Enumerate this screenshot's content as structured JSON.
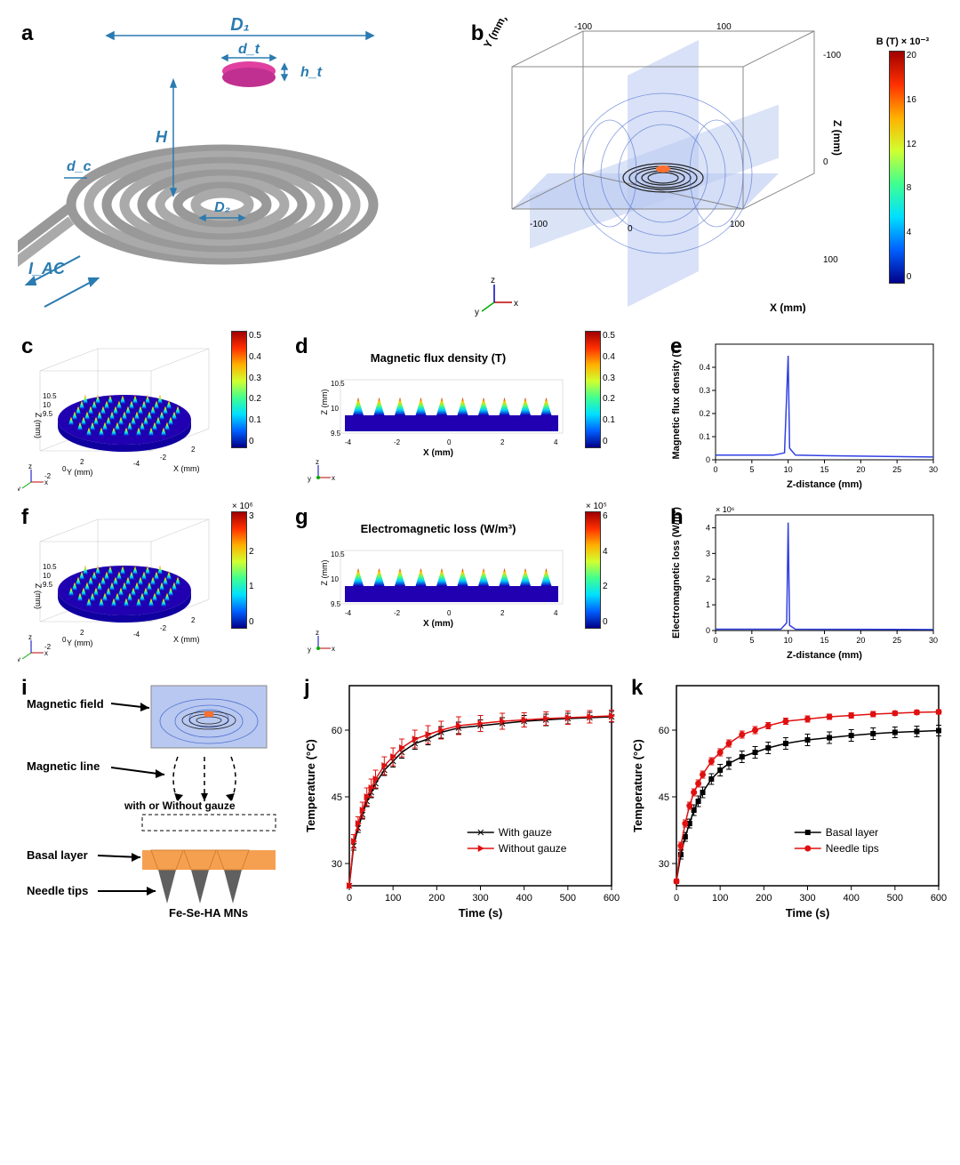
{
  "figure": {
    "a": {
      "label": "a",
      "annotations": {
        "D1": "D₁",
        "D2": "D₂",
        "dc": "d_c",
        "dt": "d_t",
        "ht": "h_t",
        "H": "H",
        "Iac": "I_AC"
      },
      "coil_color": "#b0b0b0",
      "target_color": "#e040a0",
      "arrow_color": "#2a7bb0",
      "label_color": "#2a7bb0"
    },
    "b": {
      "label": "b",
      "cube_extent": 100,
      "axis_labels": {
        "x": "X (mm)",
        "y": "Y (mm)",
        "z": "Z (mm)"
      },
      "colorbar": {
        "title": "B (T) × 10⁻³",
        "min": 0,
        "max": 20,
        "ticks": [
          0,
          4,
          8,
          12,
          16,
          20
        ]
      },
      "slice_color": "#b8c8f0",
      "coil_color": "#202020",
      "center_hot": "#ff7030"
    },
    "c": {
      "label": "c",
      "colorbar": {
        "min": 0,
        "max": 0.5,
        "ticks": [
          0,
          0.1,
          0.2,
          0.3,
          0.4,
          0.5
        ]
      },
      "axes": {
        "x": "X (mm)",
        "y": "Y (mm)",
        "z": "Z (mm)",
        "xrange": [
          -4,
          4
        ],
        "zticks": [
          9.5,
          10,
          10.5
        ]
      },
      "disk_color": "#2000b0"
    },
    "d": {
      "label": "d",
      "title": "Magnetic flux density (T)",
      "colorbar": {
        "min": 0,
        "max": 0.5,
        "ticks": [
          0,
          0.1,
          0.2,
          0.3,
          0.4,
          0.5
        ]
      },
      "axes": {
        "x": "X (mm)",
        "z": "Z (mm)",
        "xrange": [
          -4,
          4
        ],
        "zticks": [
          9.5,
          10,
          10.5
        ]
      }
    },
    "e": {
      "label": "e",
      "type": "line",
      "xlabel": "Z-distance (mm)",
      "ylabel": "Magnetic flux density (T)",
      "xlim": [
        0,
        30
      ],
      "xticks": [
        0,
        5,
        10,
        15,
        20,
        25,
        30
      ],
      "ylim": [
        0,
        0.5
      ],
      "yticks": [
        0,
        0.1,
        0.2,
        0.3,
        0.4
      ],
      "line_color": "#3040e0",
      "data": [
        [
          0,
          0.02
        ],
        [
          8,
          0.02
        ],
        [
          9.5,
          0.03
        ],
        [
          10,
          0.45
        ],
        [
          10.2,
          0.05
        ],
        [
          11,
          0.02
        ],
        [
          15,
          0.018
        ],
        [
          30,
          0.012
        ]
      ]
    },
    "f": {
      "label": "f",
      "colorbar": {
        "min": 0,
        "max": 3,
        "ticks": [
          0,
          1,
          2,
          3
        ],
        "exponent": "× 10⁶"
      }
    },
    "g": {
      "label": "g",
      "title": "Electromagnetic loss (W/m³)",
      "colorbar": {
        "min": 0,
        "max": 6,
        "ticks": [
          0,
          2,
          4,
          6
        ],
        "exponent": "× 10⁵"
      }
    },
    "h": {
      "label": "h",
      "type": "line",
      "xlabel": "Z-distance (mm)",
      "ylabel": "Electromagnetic loss (W/m³)",
      "xlim": [
        0,
        30
      ],
      "xticks": [
        0,
        5,
        10,
        15,
        20,
        25,
        30
      ],
      "ylim": [
        0,
        4.5
      ],
      "yticks": [
        0,
        1,
        2,
        3,
        4
      ],
      "exponent": "× 10⁶",
      "line_color": "#3040e0",
      "data": [
        [
          0,
          0.05
        ],
        [
          9,
          0.05
        ],
        [
          9.8,
          0.3
        ],
        [
          10,
          4.2
        ],
        [
          10.2,
          0.2
        ],
        [
          11,
          0.05
        ],
        [
          30,
          0.04
        ]
      ]
    },
    "i": {
      "label": "i",
      "labels": {
        "mag_field": "Magnetic field",
        "mag_line": "Magnetic line",
        "gauze": "with or Without gauze",
        "basal": "Basal layer",
        "tips": "Needle tips",
        "mn": "Fe-Se-HA MNs"
      },
      "basal_color": "#f5a050",
      "tip_color": "#606060"
    },
    "j": {
      "label": "j",
      "type": "line-errorbar",
      "xlabel": "Time (s)",
      "ylabel": "Temperature (°C)",
      "xlim": [
        0,
        600
      ],
      "xticks": [
        0,
        100,
        200,
        300,
        400,
        500,
        600
      ],
      "ylim": [
        25,
        70
      ],
      "yticks": [
        30,
        45,
        60
      ],
      "series": [
        {
          "name": "With gauze",
          "color": "#000000",
          "marker": "x",
          "x": [
            0,
            10,
            20,
            30,
            40,
            50,
            60,
            80,
            100,
            120,
            150,
            180,
            210,
            250,
            300,
            350,
            400,
            450,
            500,
            550,
            600
          ],
          "y": [
            25,
            34,
            38,
            41,
            44,
            46,
            48,
            51,
            53,
            55,
            57,
            58,
            59.5,
            60.5,
            61,
            61.5,
            62,
            62.3,
            62.6,
            62.8,
            63
          ],
          "err": [
            0.5,
            1,
            1,
            1,
            1.2,
            1.2,
            1.2,
            1.2,
            1.3,
            1.3,
            1.3,
            1.3,
            1.3,
            1.3,
            1.3,
            1.3,
            1.3,
            1.3,
            1.2,
            1.2,
            1.2
          ]
        },
        {
          "name": "Without gauze",
          "color": "#e01010",
          "marker": "triangle-right",
          "x": [
            0,
            10,
            20,
            30,
            40,
            50,
            60,
            80,
            100,
            120,
            150,
            180,
            210,
            250,
            300,
            350,
            400,
            450,
            500,
            550,
            600
          ],
          "y": [
            25,
            35,
            39,
            42,
            45,
            47,
            49,
            52,
            54,
            56,
            58,
            59,
            60,
            61,
            61.5,
            62,
            62.3,
            62.6,
            62.8,
            63,
            63.2
          ],
          "err": [
            0.5,
            1.5,
            1.5,
            1.8,
            2,
            2,
            2,
            2,
            2,
            2,
            2,
            2,
            2,
            2,
            1.8,
            1.8,
            1.6,
            1.5,
            1.5,
            1.4,
            1.3
          ]
        }
      ]
    },
    "k": {
      "label": "k",
      "type": "line-errorbar",
      "xlabel": "Time (s)",
      "ylabel": "Temperature (°C)",
      "xlim": [
        0,
        600
      ],
      "xticks": [
        0,
        100,
        200,
        300,
        400,
        500,
        600
      ],
      "ylim": [
        25,
        70
      ],
      "yticks": [
        30,
        45,
        60
      ],
      "series": [
        {
          "name": "Basal layer",
          "color": "#000000",
          "marker": "square",
          "x": [
            0,
            10,
            20,
            30,
            40,
            50,
            60,
            80,
            100,
            120,
            150,
            180,
            210,
            250,
            300,
            350,
            400,
            450,
            500,
            550,
            600
          ],
          "y": [
            26,
            32,
            36,
            39,
            42,
            44,
            46,
            49,
            51,
            52.5,
            54,
            55,
            56,
            57,
            57.8,
            58.3,
            58.8,
            59.2,
            59.5,
            59.7,
            59.9
          ],
          "err": [
            0.5,
            1,
            1,
            1,
            1.2,
            1.2,
            1.2,
            1.2,
            1.3,
            1.3,
            1.3,
            1.3,
            1.3,
            1.3,
            1.3,
            1.3,
            1.3,
            1.3,
            1.2,
            1.2,
            1.2
          ]
        },
        {
          "name": "Needle tips",
          "color": "#e01010",
          "marker": "circle",
          "x": [
            0,
            10,
            20,
            30,
            40,
            50,
            60,
            80,
            100,
            120,
            150,
            180,
            210,
            250,
            300,
            350,
            400,
            450,
            500,
            550,
            600
          ],
          "y": [
            26,
            34,
            39,
            43,
            46,
            48,
            50,
            53,
            55,
            57,
            59,
            60,
            61,
            62,
            62.5,
            63,
            63.3,
            63.6,
            63.8,
            64,
            64.1
          ],
          "err": [
            0.5,
            0.8,
            0.8,
            0.8,
            0.8,
            0.8,
            0.8,
            0.8,
            0.8,
            0.8,
            0.8,
            0.8,
            0.7,
            0.7,
            0.7,
            0.6,
            0.6,
            0.6,
            0.5,
            0.5,
            0.5
          ]
        }
      ]
    }
  }
}
